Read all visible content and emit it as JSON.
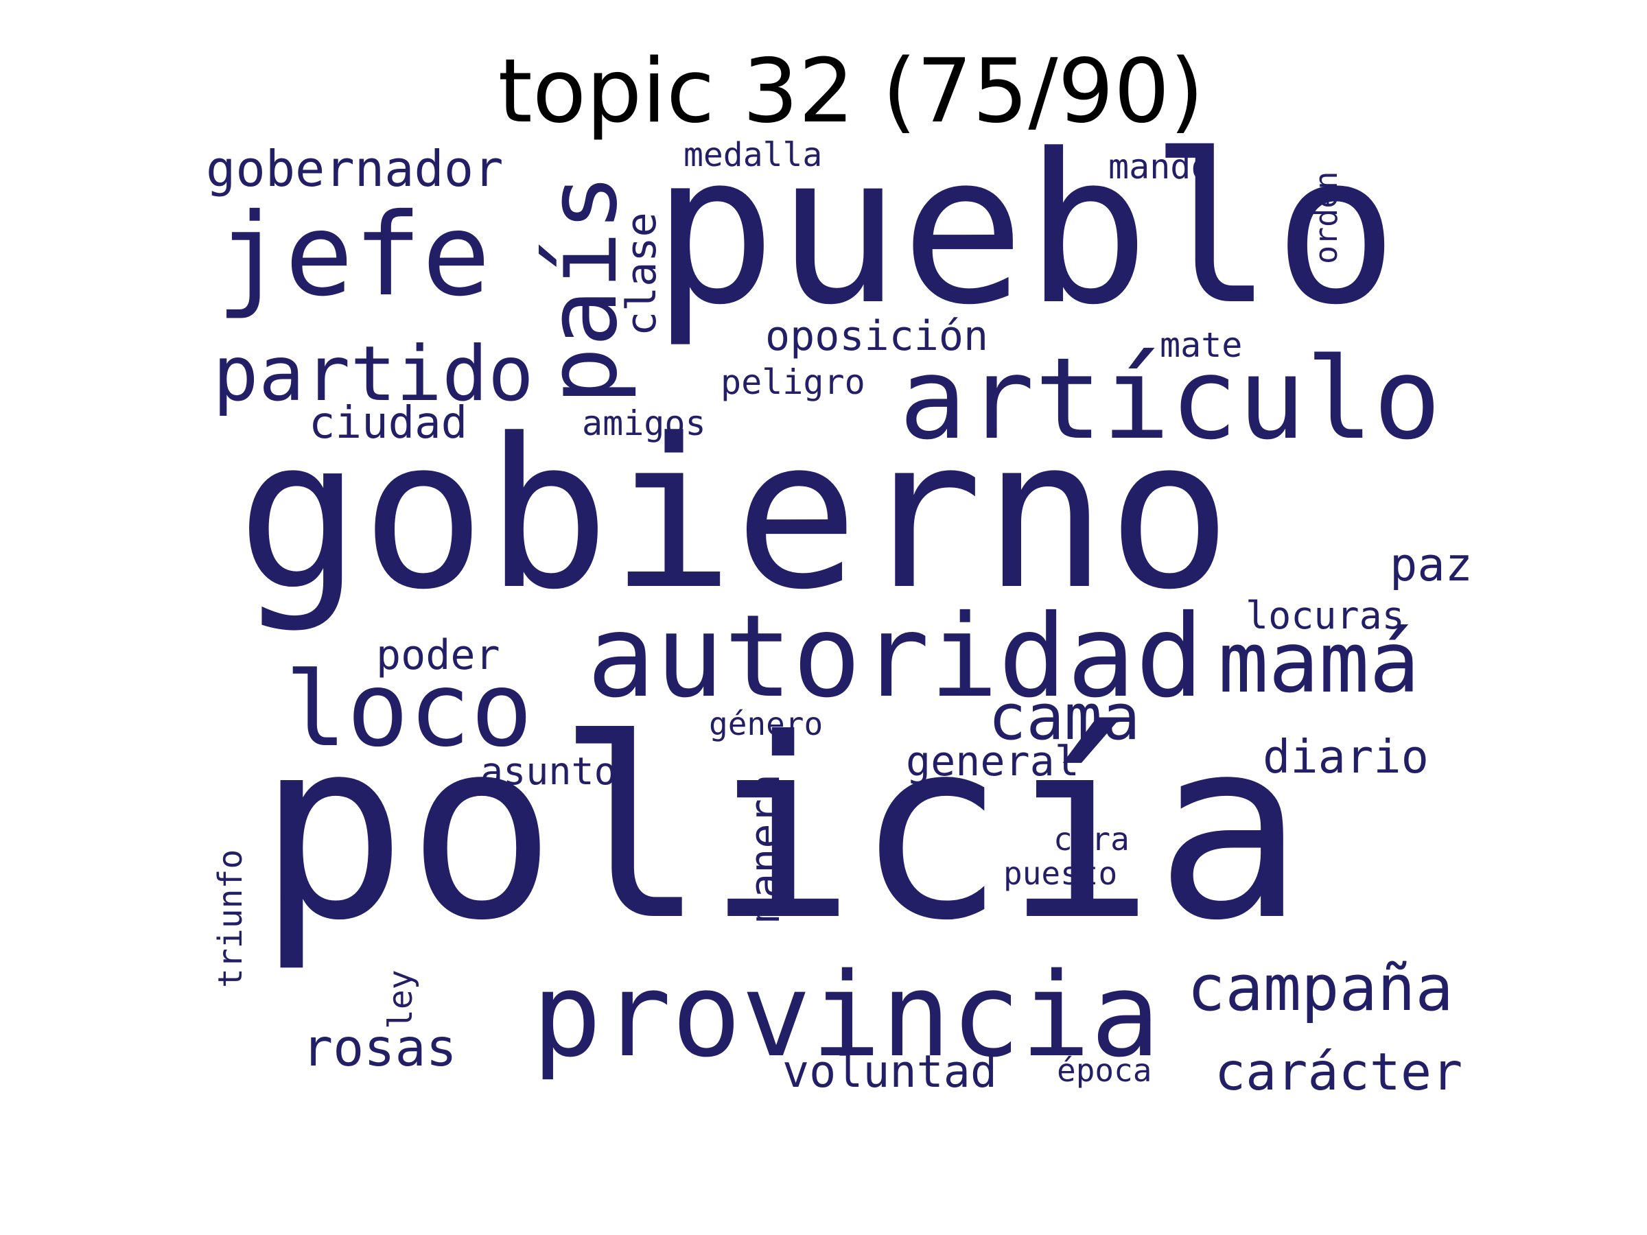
{
  "title": "topic 32 (75/90)",
  "word_color": "#221f66",
  "words": [
    {
      "id": "gobierno",
      "text": "gobierno"
    },
    {
      "id": "policia",
      "text": "policía"
    },
    {
      "id": "pueblo",
      "text": "pueblo"
    },
    {
      "id": "autoridad",
      "text": "autoridad"
    },
    {
      "id": "provincia",
      "text": "provincia"
    },
    {
      "id": "articulo",
      "text": "artículo"
    },
    {
      "id": "jefe",
      "text": "jefe"
    },
    {
      "id": "pais",
      "text": "país"
    },
    {
      "id": "partido",
      "text": "partido"
    },
    {
      "id": "loco",
      "text": "loco"
    },
    {
      "id": "mama",
      "text": "mamá"
    },
    {
      "id": "campana",
      "text": "campaña"
    },
    {
      "id": "cama",
      "text": "cama"
    },
    {
      "id": "gobernador",
      "text": "gobernador"
    },
    {
      "id": "caracter",
      "text": "carácter"
    },
    {
      "id": "rosas",
      "text": "rosas"
    },
    {
      "id": "voluntad",
      "text": "voluntad"
    },
    {
      "id": "diario",
      "text": "diario"
    },
    {
      "id": "ciudad",
      "text": "ciudad"
    },
    {
      "id": "clase",
      "text": "clase"
    },
    {
      "id": "oposicion",
      "text": "oposición"
    },
    {
      "id": "paz",
      "text": "paz"
    },
    {
      "id": "manera",
      "text": "manera"
    },
    {
      "id": "general",
      "text": "general"
    },
    {
      "id": "poder",
      "text": "poder"
    },
    {
      "id": "asunto",
      "text": "asunto"
    },
    {
      "id": "locuras",
      "text": "locuras"
    },
    {
      "id": "mando",
      "text": "mando"
    },
    {
      "id": "mate",
      "text": "mate"
    },
    {
      "id": "peligro",
      "text": "peligro"
    },
    {
      "id": "amigos",
      "text": "amigos"
    },
    {
      "id": "medalla",
      "text": "medalla"
    },
    {
      "id": "orden",
      "text": "orden"
    },
    {
      "id": "genero",
      "text": "género"
    },
    {
      "id": "triunfo",
      "text": "triunfo"
    },
    {
      "id": "ley",
      "text": "ley"
    },
    {
      "id": "cara",
      "text": "cara"
    },
    {
      "id": "puesto",
      "text": "puesto"
    },
    {
      "id": "epoca",
      "text": "época"
    }
  ]
}
